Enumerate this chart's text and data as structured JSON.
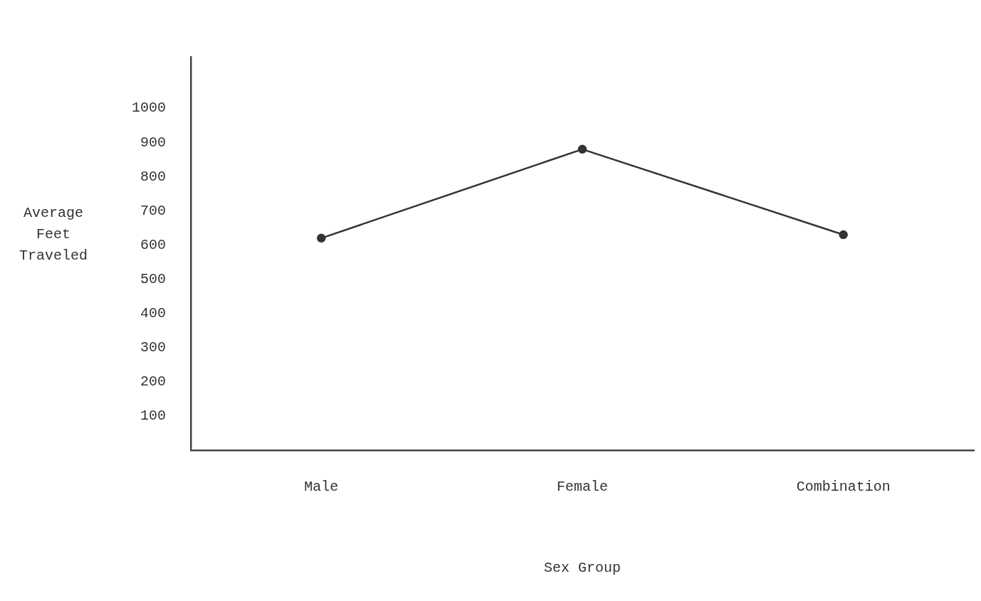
{
  "chart_data": {
    "type": "line",
    "xlabel": "Sex Group",
    "ylabel": "Average Feet Traveled",
    "categories": [
      "Male",
      "Female",
      "Combination"
    ],
    "series": [
      {
        "color": "#333333",
        "values": [
          620,
          880,
          630
        ]
      }
    ],
    "ylim": [
      0,
      1150
    ],
    "yticks": [
      100,
      200,
      300,
      400,
      500,
      600,
      700,
      800,
      900,
      1000
    ],
    "grid": false,
    "legend": false,
    "marker": "circle",
    "line_style": "solid"
  }
}
